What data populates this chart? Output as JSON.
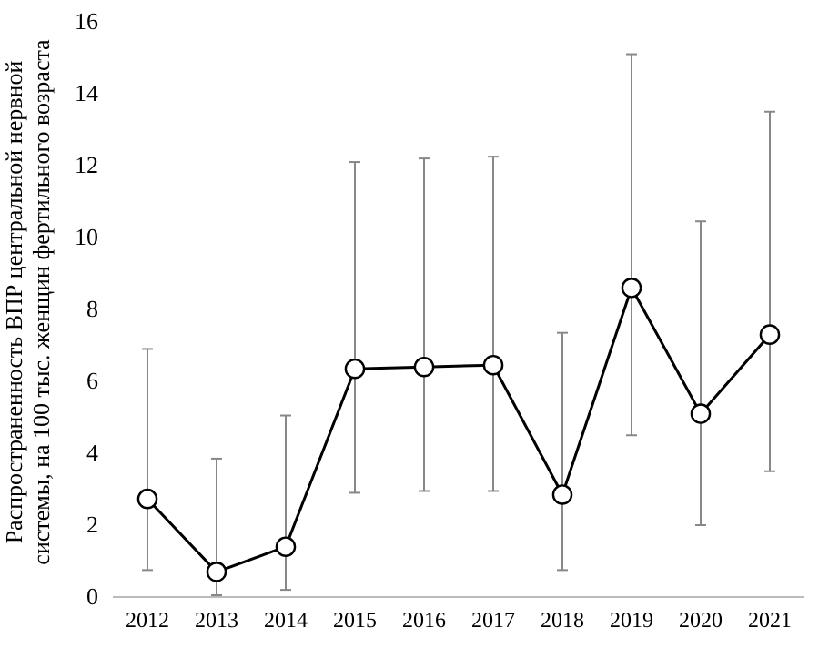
{
  "chart_data": {
    "type": "line",
    "ylabel": "Распространенность ВПР центральной нервной системы, на 100 тыс. женщин фертильного возраста",
    "categories": [
      "2012",
      "2013",
      "2014",
      "2015",
      "2016",
      "2017",
      "2018",
      "2019",
      "2020",
      "2021"
    ],
    "series": [
      {
        "color": "#000000",
        "values": [
          2.73,
          0.7,
          1.4,
          6.35,
          6.4,
          6.45,
          2.85,
          8.6,
          5.1,
          7.3
        ],
        "errors": [
          [
            0.75,
            6.9
          ],
          [
            0.05,
            3.85
          ],
          [
            0.2,
            5.05
          ],
          [
            2.9,
            12.1
          ],
          [
            2.95,
            12.2
          ],
          [
            2.95,
            12.25
          ],
          [
            0.75,
            7.35
          ],
          [
            4.5,
            15.1
          ],
          [
            2.0,
            10.45
          ],
          [
            3.5,
            13.5
          ]
        ]
      }
    ],
    "ylim": [
      0,
      16
    ],
    "yticks": [
      0,
      2,
      4,
      6,
      8,
      10,
      12,
      14,
      16
    ],
    "marker": "circle",
    "line_style": "solid",
    "grid": false
  }
}
